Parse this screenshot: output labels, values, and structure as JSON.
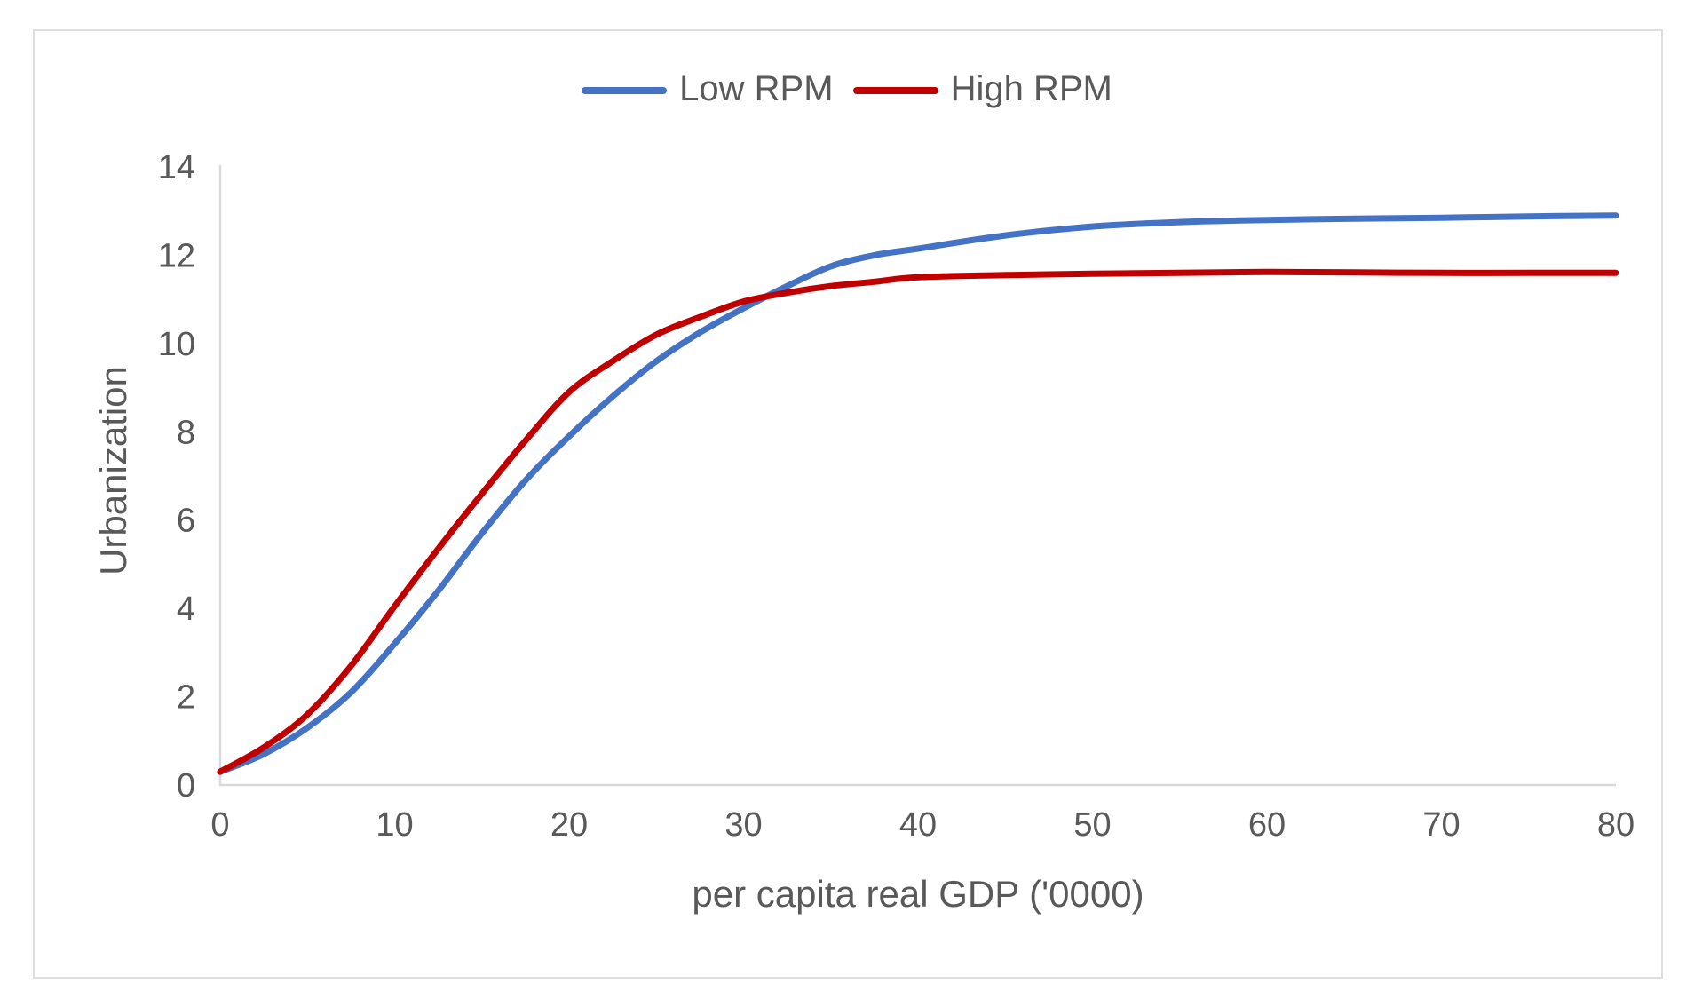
{
  "figure": {
    "background": "#FFFFFF",
    "border_color": "#DEDEDE",
    "axis_color": "#D9D9D9",
    "text_color": "#595959"
  },
  "chart_data": {
    "type": "line",
    "title": "",
    "xlabel": "per capita real GDP ('0000)",
    "ylabel": "Urbanization",
    "xlim": [
      0,
      80
    ],
    "ylim": [
      0,
      14
    ],
    "x_ticks": [
      0,
      10,
      20,
      30,
      40,
      50,
      60,
      70,
      80
    ],
    "y_ticks": [
      0,
      2,
      4,
      6,
      8,
      10,
      12,
      14
    ],
    "grid": false,
    "legend_position": "top-center",
    "x": [
      0,
      2.5,
      5,
      7.5,
      10,
      12.5,
      15,
      17.5,
      20,
      22.5,
      25,
      27.5,
      30,
      32.5,
      35,
      37.5,
      40,
      45,
      50,
      55,
      60,
      65,
      70,
      75,
      80
    ],
    "series": [
      {
        "name": "Low RPM",
        "color": "#4472C4",
        "values": [
          0.3,
          0.7,
          1.3,
          2.1,
          3.2,
          4.4,
          5.7,
          6.9,
          7.9,
          8.8,
          9.6,
          10.25,
          10.8,
          11.3,
          11.75,
          12.0,
          12.15,
          12.45,
          12.65,
          12.75,
          12.8,
          12.83,
          12.85,
          12.88,
          12.9
        ]
      },
      {
        "name": "High RPM",
        "color": "#C00000",
        "values": [
          0.3,
          0.85,
          1.6,
          2.7,
          4.05,
          5.35,
          6.6,
          7.8,
          8.9,
          9.6,
          10.2,
          10.6,
          10.95,
          11.15,
          11.3,
          11.4,
          11.5,
          11.55,
          11.58,
          11.6,
          11.62,
          11.61,
          11.6,
          11.6,
          11.6
        ]
      }
    ]
  }
}
